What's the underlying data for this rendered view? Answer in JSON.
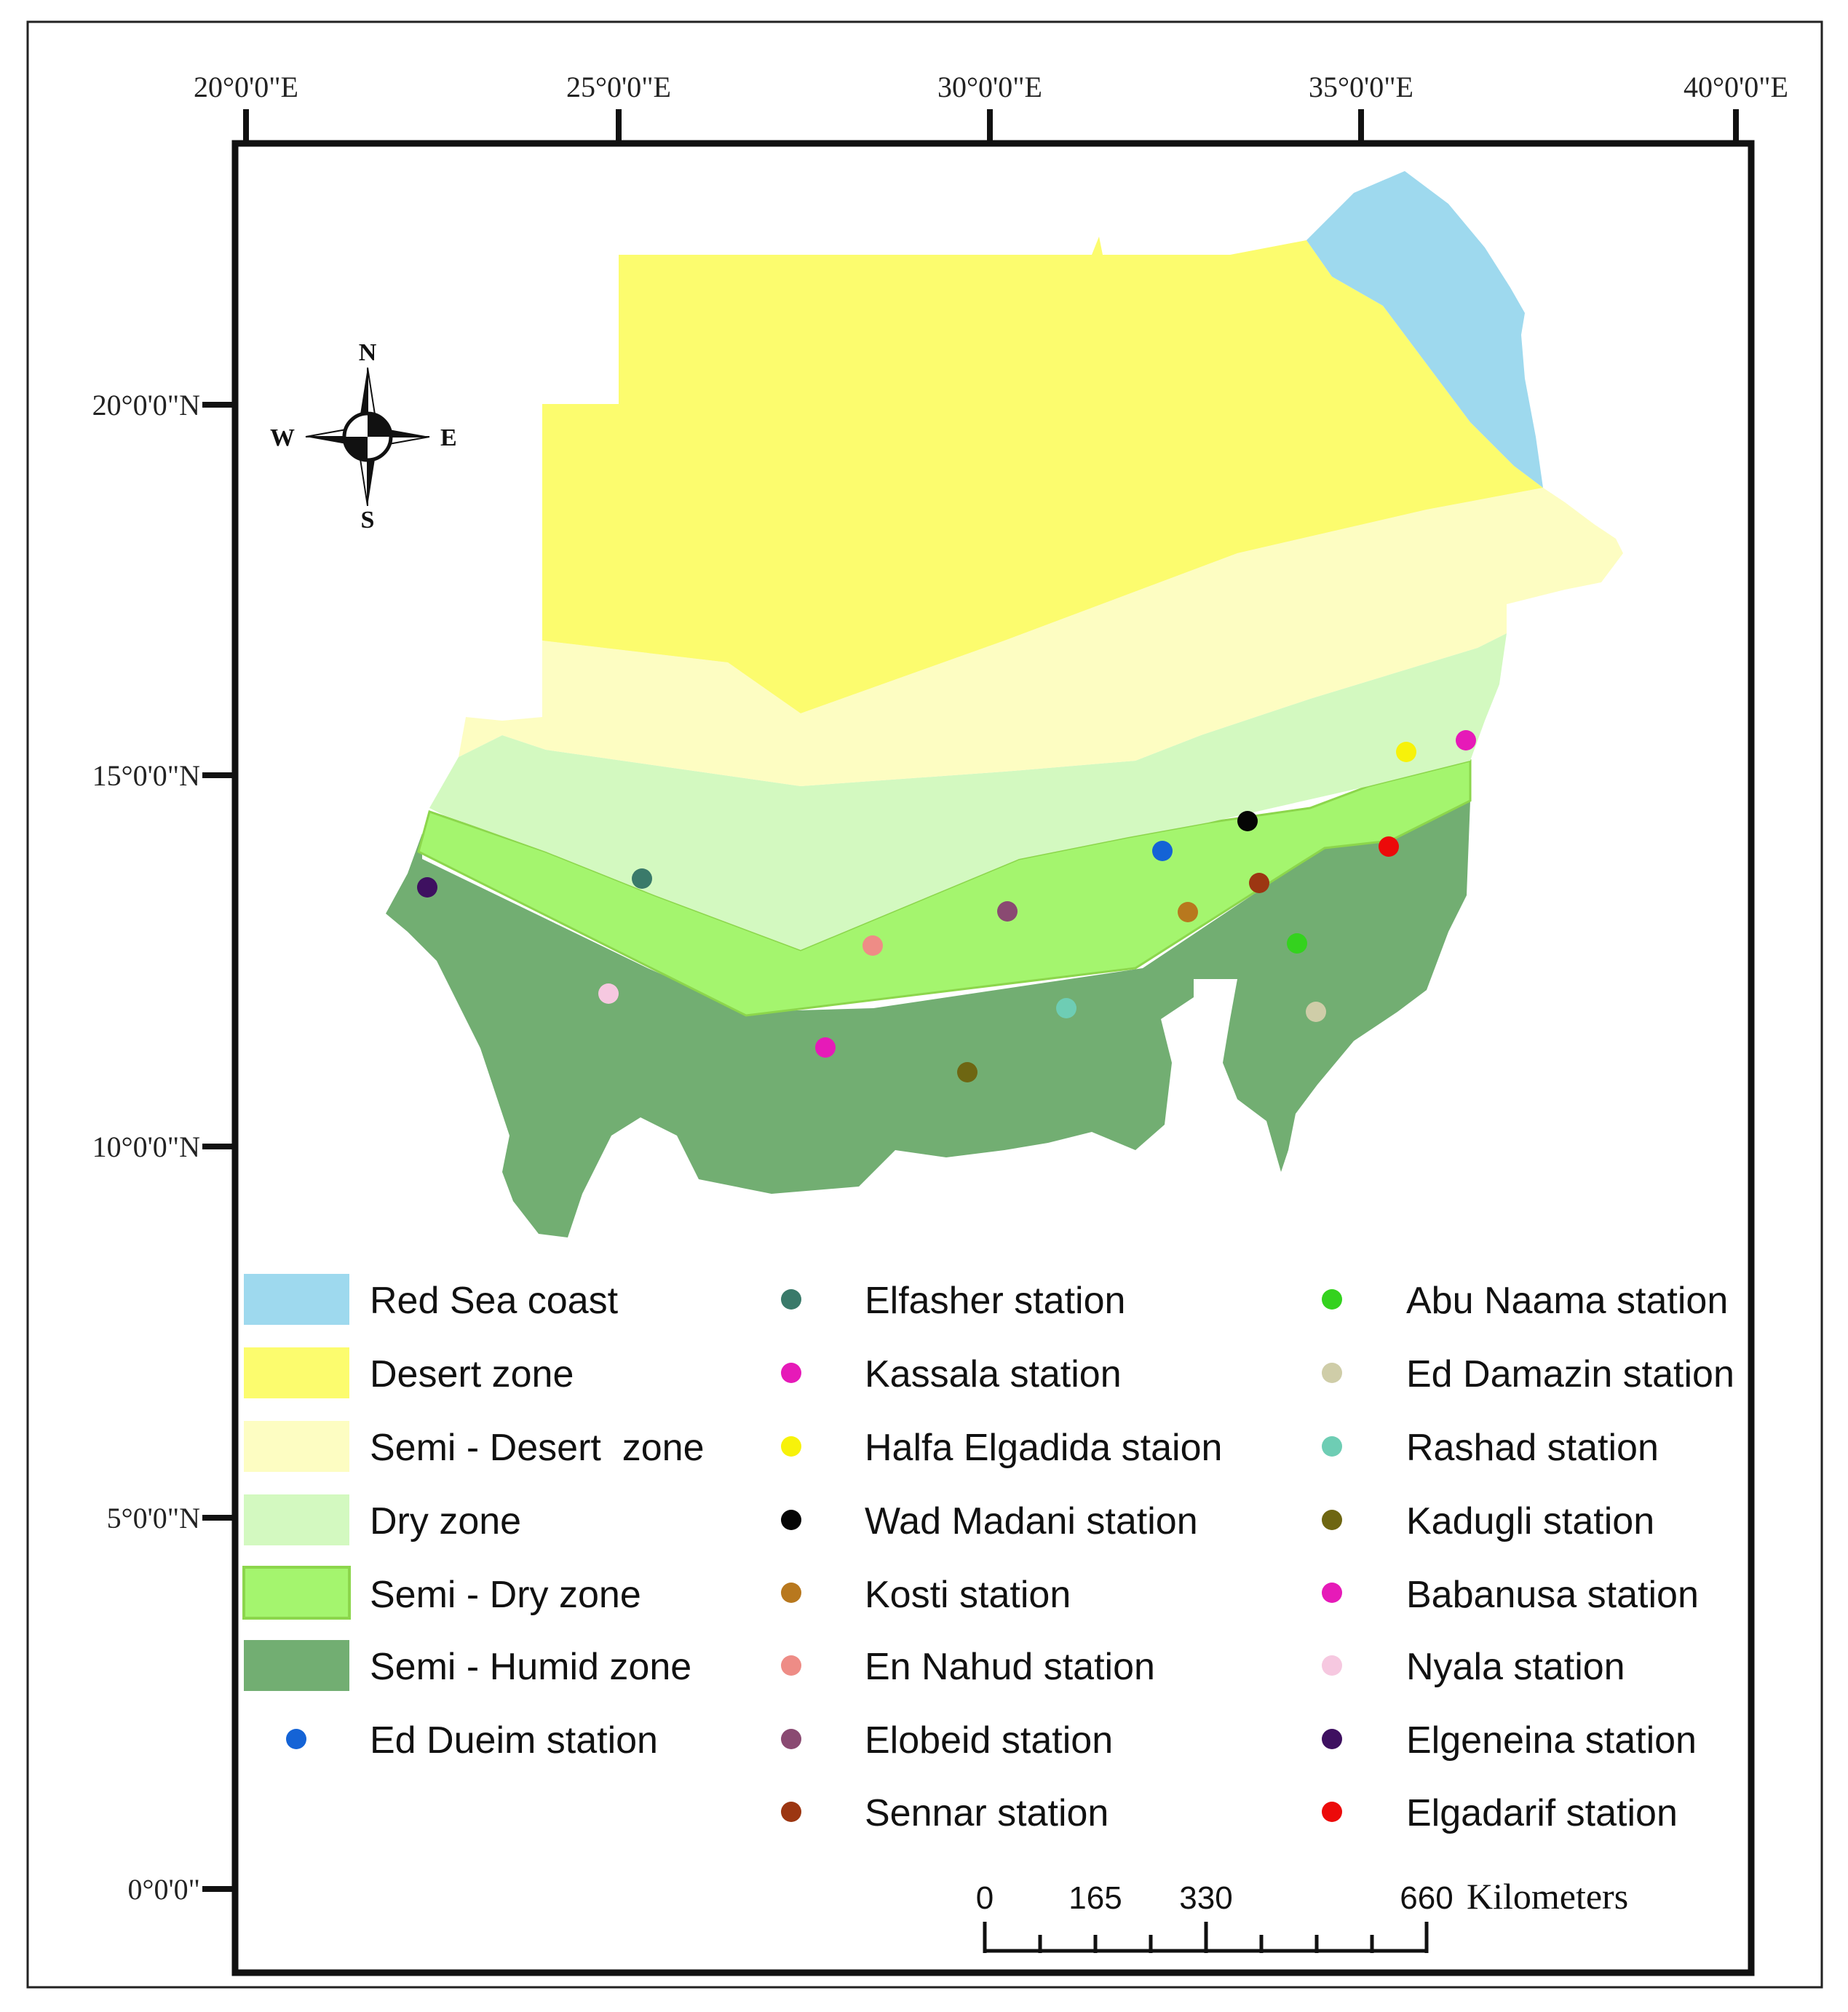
{
  "axes": {
    "longitude_labels": [
      "20°0'0\"E",
      "25°0'0\"E",
      "30°0'0\"E",
      "35°0'0\"E",
      "40°0'0\"E"
    ],
    "latitude_labels": [
      "20°0'0\"N",
      "15°0'0\"N",
      "10°0'0\"N",
      "5°0'0\"N",
      "0°0'0\""
    ]
  },
  "compass": {
    "n": "N",
    "s": "S",
    "e": "E",
    "w": "W"
  },
  "zones": [
    {
      "label": "Red Sea coast",
      "color": "#9ED9EE"
    },
    {
      "label": "Desert zone",
      "color": "#FCFC6E"
    },
    {
      "label": "Semi - Desert  zone",
      "color": "#FDFDC2"
    },
    {
      "label": "Dry zone",
      "color": "#D3F9C0"
    },
    {
      "label": "Semi - Dry zone",
      "color": "#A4F56E"
    },
    {
      "label": "Semi - Humid zone",
      "color": "#72AE72"
    }
  ],
  "stations": [
    {
      "label": "Ed Dueim station",
      "color": "#1463D6"
    },
    {
      "label": "Elfasher station",
      "color": "#3A7A6A"
    },
    {
      "label": "Kassala station",
      "color": "#E61AB8"
    },
    {
      "label": "Halfa Elgadida staion",
      "color": "#F7F20A"
    },
    {
      "label": "Wad Madani station",
      "color": "#050505"
    },
    {
      "label": "Kosti station",
      "color": "#B8781E"
    },
    {
      "label": "En Nahud station",
      "color": "#EE8C86"
    },
    {
      "label": "Elobeid station",
      "color": "#8A4A72"
    },
    {
      "label": "Sennar station",
      "color": "#9C3612"
    },
    {
      "label": "Abu Naama station",
      "color": "#34D21E"
    },
    {
      "label": "Ed Damazin station",
      "color": "#CFCDA8"
    },
    {
      "label": "Rashad station",
      "color": "#6ECDB4"
    },
    {
      "label": "Kadugli station",
      "color": "#6E6612"
    },
    {
      "label": "Babanusa station",
      "color": "#E61AB8"
    },
    {
      "label": "Nyala station",
      "color": "#F6C8E0"
    },
    {
      "label": "Elgeneina station",
      "color": "#3E1060"
    },
    {
      "label": "Elgadarif station",
      "color": "#EC0A0A"
    }
  ],
  "scale_bar": {
    "ticks": [
      "0",
      "165",
      "330",
      "660"
    ],
    "unit": "Kilometers"
  }
}
